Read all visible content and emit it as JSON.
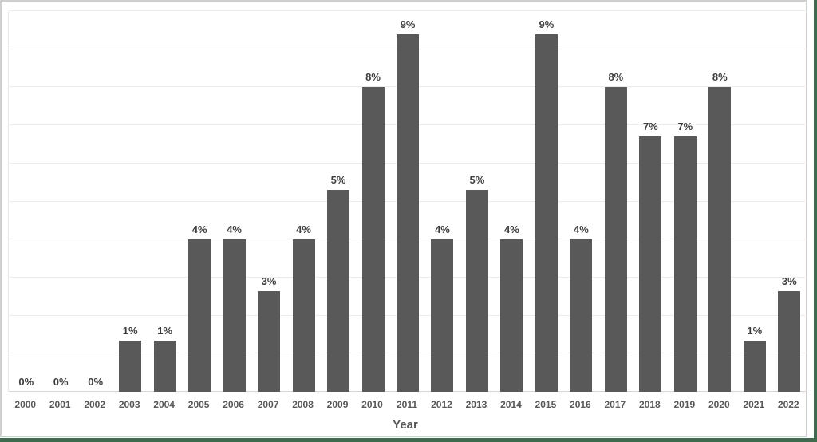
{
  "chart_data": {
    "type": "bar",
    "title": "",
    "xlabel": "Year",
    "ylabel": "",
    "categories": [
      "2000",
      "2001",
      "2002",
      "2003",
      "2004",
      "2005",
      "2006",
      "2007",
      "2008",
      "2009",
      "2010",
      "2011",
      "2012",
      "2013",
      "2014",
      "2015",
      "2016",
      "2017",
      "2018",
      "2019",
      "2020",
      "2021",
      "2022"
    ],
    "values": [
      0,
      0,
      0,
      1,
      1,
      4,
      4,
      3,
      4,
      5,
      8,
      9,
      4,
      5,
      4,
      9,
      4,
      8,
      7,
      7,
      8,
      1,
      3
    ],
    "data_labels": [
      "0%",
      "0%",
      "0%",
      "1%",
      "1%",
      "4%",
      "4%",
      "3%",
      "4%",
      "5%",
      "8%",
      "9%",
      "4%",
      "5%",
      "4%",
      "9%",
      "4%",
      "8%",
      "7%",
      "7%",
      "8%",
      "1%",
      "3%"
    ],
    "values_precise_estimate": [
      0,
      0,
      0,
      1.35,
      1.35,
      4,
      4,
      2.65,
      4,
      5.3,
      8,
      9.4,
      4,
      5.3,
      4,
      9.4,
      4,
      8,
      6.7,
      6.7,
      8,
      1.35,
      2.65
    ],
    "ylim": [
      0,
      10
    ],
    "gridline_interval": 1,
    "grid": true,
    "legend": "none",
    "y_axis_labels_visible": false,
    "series_name": "",
    "colors": {
      "bar": "#595959",
      "data_label": "#3f3f3f",
      "tick_label": "#595959",
      "axis_title": "#595959",
      "gridline": "#ececec",
      "axis_line": "#d6d6d6",
      "chart_border": "#ccd1cf",
      "outer_accent_edge": "#3e6b4e"
    }
  }
}
